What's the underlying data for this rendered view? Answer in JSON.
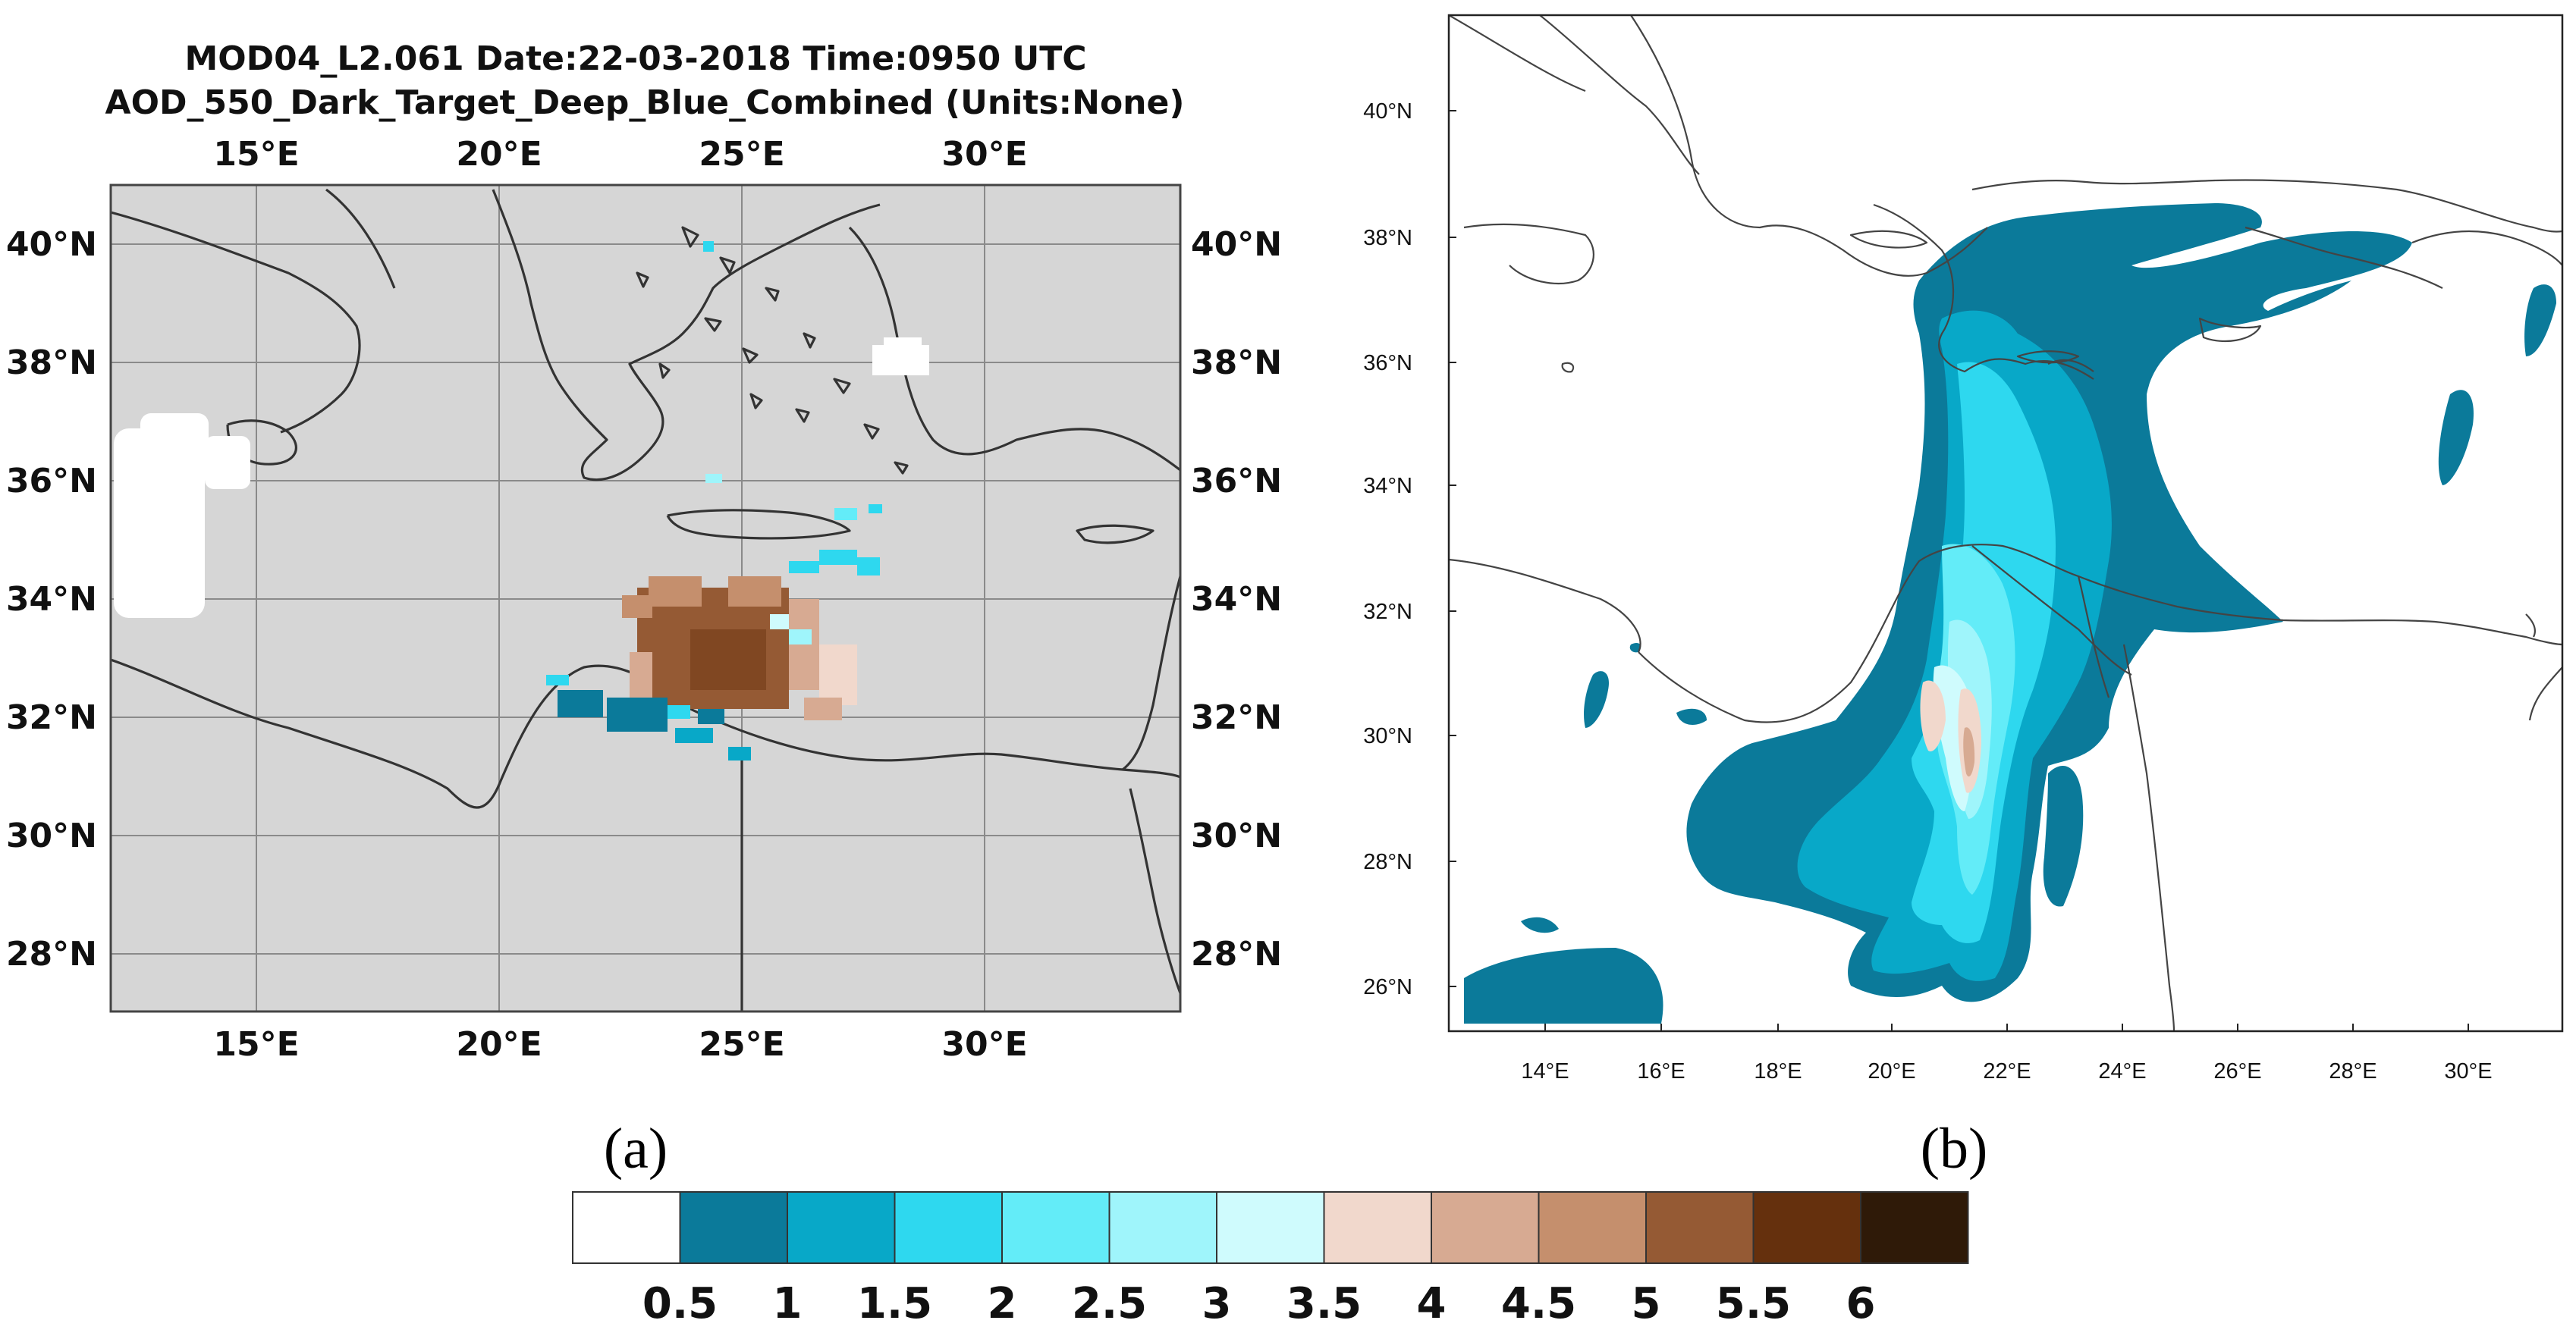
{
  "panel_a": {
    "label": "(a)",
    "header_line1": "MOD04_L2.061    Date:22-03-2018    Time:0950  UTC",
    "header_line2": "AOD_550_Dark_Target_Deep_Blue_Combined     (Units:None)",
    "lon_ticks": [
      "15°E",
      "20°E",
      "25°E",
      "30°E"
    ],
    "lat_ticks": [
      "40°N",
      "38°N",
      "36°N",
      "34°N",
      "32°N",
      "30°N",
      "28°N"
    ],
    "colors": {
      "land": "#d6d6d6",
      "border": "#444444"
    }
  },
  "panel_b": {
    "label": "(b)",
    "lon_ticks": [
      "14°E",
      "16°E",
      "18°E",
      "20°E",
      "22°E",
      "24°E",
      "26°E",
      "28°E",
      "30°E"
    ],
    "lat_ticks": [
      "40°N",
      "38°N",
      "36°N",
      "34°N",
      "32°N",
      "30°N",
      "28°N",
      "26°N"
    ],
    "colors": {
      "background": "#ffffff",
      "border": "#222222"
    }
  },
  "colorbar": {
    "labels": [
      "0.5",
      "1",
      "1.5",
      "2",
      "2.5",
      "3",
      "3.5",
      "4",
      "4.5",
      "5",
      "5.5",
      "6"
    ],
    "colors": [
      "#ffffff",
      "#0b7a9a",
      "#08a8c8",
      "#2ed8ef",
      "#63ecf8",
      "#9ff5fb",
      "#cffbfd",
      "#f1d8cc",
      "#d7aa92",
      "#c58f6d",
      "#955a34",
      "#65300d",
      "#2f1a08"
    ]
  },
  "chart_data": [
    {
      "type": "heatmap",
      "panel": "a",
      "title": "MOD04_L2.061 Date:22-03-2018 Time:0950 UTC / AOD_550_Dark_Target_Deep_Blue_Combined (Units:None)",
      "x_range": [
        12,
        34
      ],
      "y_range": [
        27,
        41
      ],
      "xticks": [
        15,
        20,
        25,
        30
      ],
      "yticks": [
        28,
        30,
        32,
        34,
        36,
        38,
        40
      ],
      "grid": true,
      "cells": [
        {
          "lon": 23.6,
          "lat": 33.4,
          "aod": 5.5
        },
        {
          "lon": 24.5,
          "lat": 33.0,
          "aod": 5.5
        },
        {
          "lon": 23.0,
          "lat": 33.6,
          "aod": 5.0
        },
        {
          "lon": 25.6,
          "lat": 33.2,
          "aod": 4.0
        },
        {
          "lon": 22.6,
          "lat": 31.9,
          "aod": 1.0
        },
        {
          "lon": 25.0,
          "lat": 31.4,
          "aod": 1.0
        },
        {
          "lon": 26.8,
          "lat": 34.5,
          "aod": 2.0
        },
        {
          "lon": 24.3,
          "lat": 40.0,
          "aod": 1.5
        },
        {
          "lon": 13.5,
          "lat": 35.3,
          "aod": 0.5
        },
        {
          "lon": 28.2,
          "lat": 38.0,
          "aod": 0.5
        }
      ]
    },
    {
      "type": "heatmap",
      "panel": "b",
      "x_range": [
        12.5,
        31.8
      ],
      "y_range": [
        25.3,
        41.5
      ],
      "xticks": [
        14,
        16,
        18,
        20,
        22,
        24,
        26,
        28,
        30
      ],
      "yticks": [
        26,
        28,
        30,
        32,
        34,
        36,
        38,
        40
      ],
      "grid": false,
      "plume_core": [
        {
          "lon": 20.5,
          "lat": 30.4,
          "aod": 4.0
        },
        {
          "lon": 21.3,
          "lat": 30.0,
          "aod": 4.0
        },
        {
          "lon": 21.0,
          "lat": 31.0,
          "aod": 3.0
        },
        {
          "lon": 21.5,
          "lat": 33.0,
          "aod": 2.0
        },
        {
          "lon": 21.8,
          "lat": 35.0,
          "aod": 1.5
        },
        {
          "lon": 24.0,
          "lat": 36.5,
          "aod": 1.0
        }
      ]
    }
  ]
}
